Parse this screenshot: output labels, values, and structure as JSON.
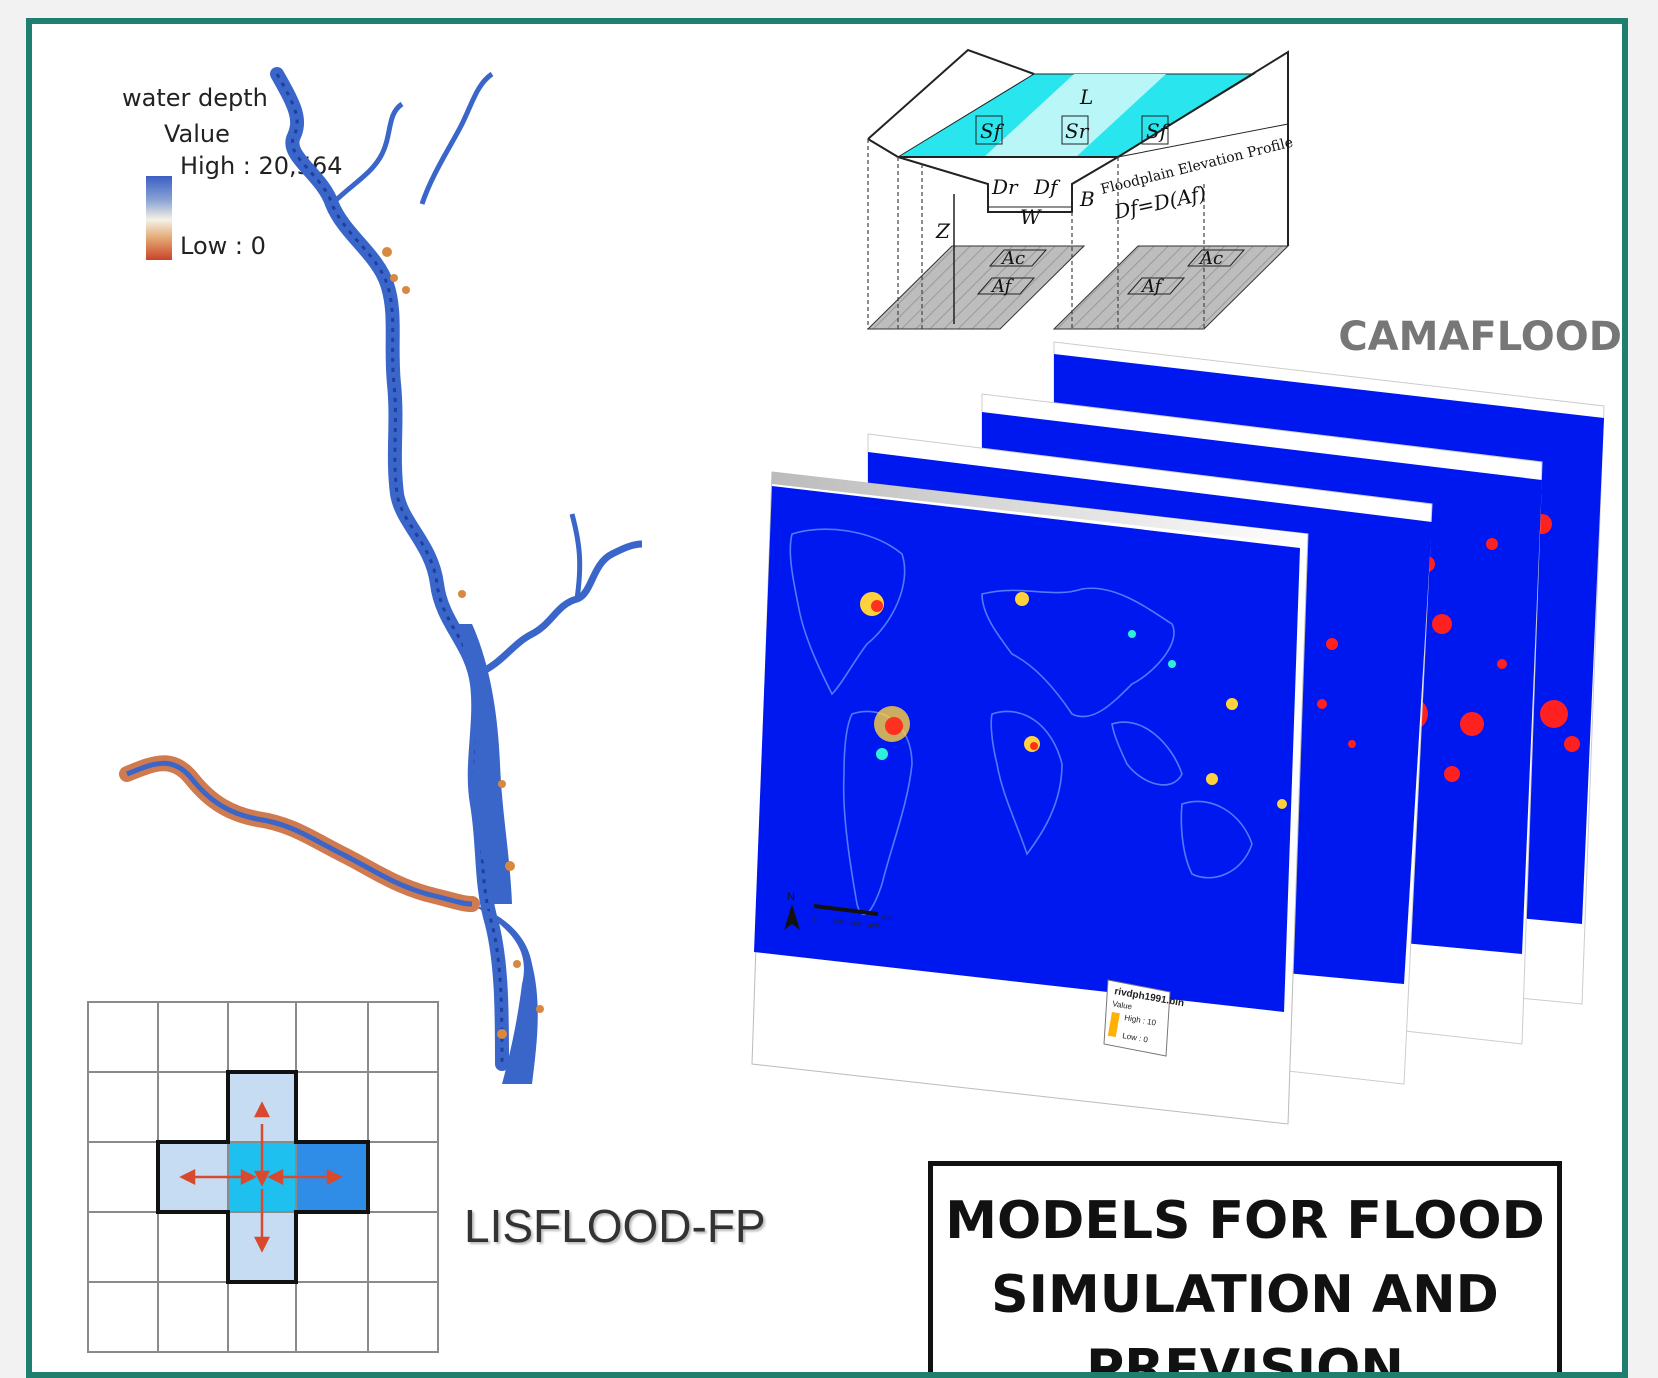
{
  "legend": {
    "title": "water depth",
    "subtitle": "Value",
    "high_label": "High : 20,564",
    "low_label": "Low : 0"
  },
  "camaflood": {
    "label": "CAMAFLOOD",
    "diagram_labels": {
      "L": "L",
      "Sf_left": "Sf",
      "Sr": "Sr",
      "Sf_right": "Sf",
      "Dr": "Dr",
      "Df": "Df",
      "W": "W",
      "B": "B",
      "Z": "Z",
      "profile": "Floodplain Elevation Profile",
      "formula": "Df=D(Af)",
      "Ac_left": "Ac",
      "Af_left": "Af",
      "Ac_right": "Ac",
      "Af_right": "Af"
    }
  },
  "map_stack": {
    "legend_file": "rivdph1991.bin",
    "legend_value": "Value",
    "legend_high": "High : 10",
    "legend_low": "Low : 0",
    "north": "N",
    "scale_unit": "Km",
    "scale_ticks": [
      "0",
      "150",
      "300",
      "450"
    ]
  },
  "lisflood": {
    "label": "LISFLOOD-FP"
  },
  "title": {
    "lines": [
      "MODELS FOR FLOOD",
      "SIMULATION AND",
      "PREVISION"
    ]
  },
  "colors": {
    "frame": "#1f7f6f",
    "map_blue": "#0018f0",
    "river_blue": "#3a66c9",
    "river_red": "#c8442a",
    "channel_cyan": "#29e6ee",
    "cell_light_blue": "#c5dcf2",
    "cell_cyan": "#1ec0f0",
    "cell_blue": "#2f8de8",
    "arrow": "#d9492d",
    "camaflood_label": "#777777"
  }
}
